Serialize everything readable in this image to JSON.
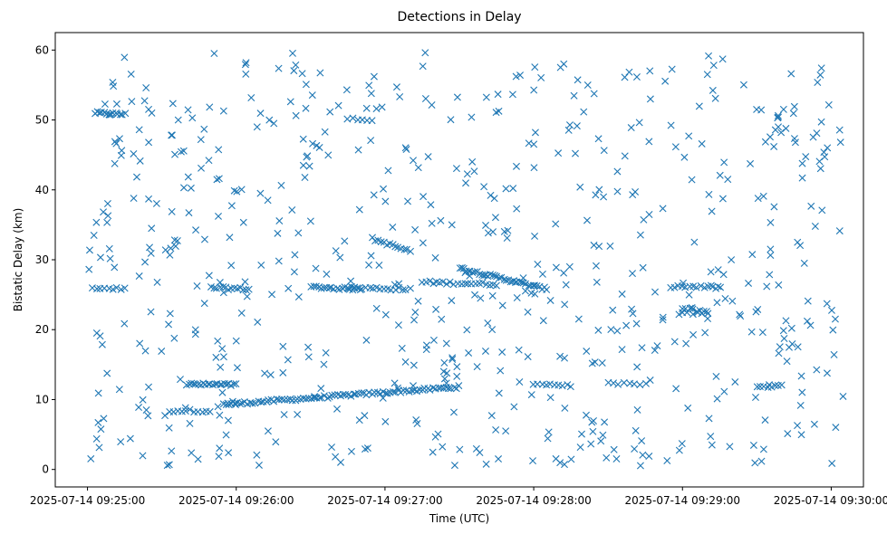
{
  "chart_data": {
    "type": "scatter",
    "title": "Detections in Delay",
    "xlabel": "Time (UTC)",
    "ylabel": "Bistatic Delay (km)",
    "marker": "x",
    "color": "#1f77b4",
    "grid": false,
    "xlim": [
      "2025-07-14 09:24:47",
      "2025-07-14 09:30:13"
    ],
    "ylim": [
      -2.5,
      62.5
    ],
    "x_ticks": [
      "2025-07-14 09:25:00",
      "2025-07-14 09:26:00",
      "2025-07-14 09:27:00",
      "2025-07-14 09:28:00",
      "2025-07-14 09:29:00",
      "2025-07-14 09:30:00"
    ],
    "y_ticks": [
      0,
      10,
      20,
      30,
      40,
      50,
      60
    ],
    "tracks": [
      {
        "x": [
          "2025-07-14 09:25:03",
          "2025-07-14 09:25:15"
        ],
        "y": [
          51.0,
          50.8
        ],
        "count": 14
      },
      {
        "x": [
          "2025-07-14 09:25:02",
          "2025-07-14 09:25:15"
        ],
        "y": [
          26.0,
          25.8
        ],
        "count": 9
      },
      {
        "x": [
          "2025-07-14 09:25:33",
          "2025-07-14 09:25:48"
        ],
        "y": [
          8.4,
          8.4
        ],
        "count": 10
      },
      {
        "x": [
          "2025-07-14 09:25:40",
          "2025-07-14 09:26:00"
        ],
        "y": [
          12.2,
          12.1
        ],
        "count": 22
      },
      {
        "x": [
          "2025-07-14 09:25:50",
          "2025-07-14 09:26:05"
        ],
        "y": [
          26.0,
          25.8
        ],
        "count": 14
      },
      {
        "x": [
          "2025-07-14 09:25:55",
          "2025-07-14 09:27:30"
        ],
        "y": [
          9.3,
          11.8
        ],
        "count": 90
      },
      {
        "x": [
          "2025-07-14 09:26:30",
          "2025-07-14 09:26:50"
        ],
        "y": [
          26.1,
          25.8
        ],
        "count": 20
      },
      {
        "x": [
          "2025-07-14 09:26:45",
          "2025-07-14 09:26:55"
        ],
        "y": [
          50.3,
          50.0
        ],
        "count": 6
      },
      {
        "x": [
          "2025-07-14 09:26:45",
          "2025-07-14 09:27:10"
        ],
        "y": [
          26.0,
          25.8
        ],
        "count": 18
      },
      {
        "x": [
          "2025-07-14 09:26:55",
          "2025-07-14 09:27:10"
        ],
        "y": [
          33.0,
          31.2
        ],
        "count": 14
      },
      {
        "x": [
          "2025-07-14 09:27:15",
          "2025-07-14 09:27:45"
        ],
        "y": [
          26.8,
          26.5
        ],
        "count": 22
      },
      {
        "x": [
          "2025-07-14 09:27:30",
          "2025-07-14 09:28:05"
        ],
        "y": [
          28.8,
          25.8
        ],
        "count": 40
      },
      {
        "x": [
          "2025-07-14 09:28:00",
          "2025-07-14 09:28:15"
        ],
        "y": [
          12.3,
          12.0
        ],
        "count": 10
      },
      {
        "x": [
          "2025-07-14 09:28:30",
          "2025-07-14 09:28:45"
        ],
        "y": [
          12.3,
          12.1
        ],
        "count": 8
      },
      {
        "x": [
          "2025-07-14 09:28:55",
          "2025-07-14 09:29:15"
        ],
        "y": [
          26.2,
          26.0
        ],
        "count": 14
      },
      {
        "x": [
          "2025-07-14 09:29:00",
          "2025-07-14 09:29:10"
        ],
        "y": [
          23.0,
          22.6
        ],
        "count": 8
      },
      {
        "x": [
          "2025-07-14 09:29:00",
          "2025-07-14 09:29:10"
        ],
        "y": [
          22.5,
          22.2
        ],
        "count": 6
      },
      {
        "x": [
          "2025-07-14 09:29:30",
          "2025-07-14 09:29:40"
        ],
        "y": [
          11.9,
          11.9
        ],
        "count": 8
      }
    ],
    "clutter": {
      "count": 640,
      "x_range": [
        "2025-07-14 09:25:00",
        "2025-07-14 09:30:05"
      ],
      "y_range": [
        0.5,
        59.8
      ],
      "distribution": "uniform"
    }
  }
}
